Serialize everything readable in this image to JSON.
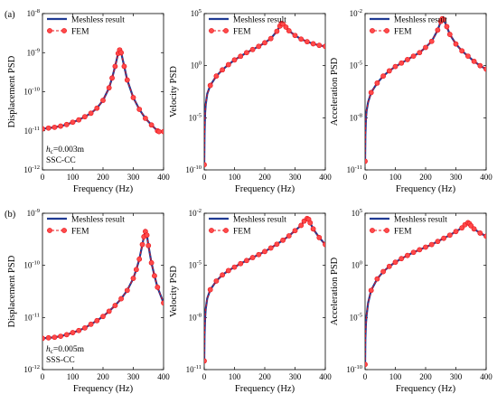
{
  "colors": {
    "meshless": "#1f3a93",
    "fem": "#e8141b",
    "fem_fill": "#ff4a4a"
  },
  "chart_data": [
    {
      "type": "line",
      "panel_label": "(a)",
      "xlabel": "Frequency (Hz)",
      "ylabel": "Displacement PSD",
      "xlim": [
        0,
        400
      ],
      "xticks": [
        "0",
        "100",
        "200",
        "300",
        "400"
      ],
      "ylim_exp": [
        -12,
        -8
      ],
      "ytick_exps": [
        -12,
        -11,
        -10,
        -9,
        -8
      ],
      "legend": "top-left",
      "annotations": [
        "h",
        "c",
        "=0.003m",
        "SSC-CC"
      ],
      "series": [
        {
          "name": "Meshless result",
          "style": "solid",
          "x": [
            0,
            20,
            40,
            60,
            80,
            100,
            120,
            140,
            160,
            180,
            200,
            220,
            230,
            240,
            250,
            255,
            260,
            270,
            280,
            300,
            320,
            340,
            360,
            380,
            385,
            400
          ],
          "log_y": [
            -10.95,
            -10.93,
            -10.91,
            -10.88,
            -10.84,
            -10.78,
            -10.72,
            -10.64,
            -10.55,
            -10.42,
            -10.22,
            -9.9,
            -9.65,
            -9.35,
            -9.02,
            -8.93,
            -9.0,
            -9.35,
            -9.7,
            -10.15,
            -10.45,
            -10.68,
            -10.85,
            -11.0,
            -11.02,
            -11.02
          ]
        },
        {
          "name": "FEM",
          "style": "dashed-marker",
          "x": [
            0,
            20,
            40,
            60,
            80,
            100,
            120,
            140,
            160,
            180,
            200,
            220,
            230,
            240,
            250,
            255,
            260,
            270,
            280,
            300,
            320,
            340,
            360,
            380,
            385,
            400
          ],
          "log_y": [
            -10.95,
            -10.93,
            -10.91,
            -10.88,
            -10.84,
            -10.78,
            -10.72,
            -10.64,
            -10.55,
            -10.42,
            -10.22,
            -9.9,
            -9.65,
            -9.35,
            -9.02,
            -8.93,
            -9.0,
            -9.35,
            -9.7,
            -10.15,
            -10.45,
            -10.68,
            -10.85,
            -11.0,
            -11.02,
            -11.02
          ]
        }
      ]
    },
    {
      "type": "line",
      "xlabel": "Frequency (Hz)",
      "ylabel": "Velocity PSD",
      "xlim": [
        0,
        400
      ],
      "xticks": [
        "0",
        "100",
        "200",
        "300",
        "400"
      ],
      "ylim_exp": [
        -10,
        5
      ],
      "ytick_exps": [
        -10,
        -5,
        0,
        5
      ],
      "legend": "top-left",
      "series": [
        {
          "name": "Meshless result",
          "style": "solid",
          "x": [
            0,
            1,
            3,
            5,
            10,
            20,
            40,
            60,
            80,
            100,
            120,
            140,
            160,
            180,
            200,
            220,
            240,
            250,
            255,
            260,
            270,
            280,
            300,
            320,
            340,
            360,
            380,
            400
          ],
          "log_y": [
            -9.5,
            -6.5,
            -4.5,
            -3.7,
            -2.7,
            -1.9,
            -1.0,
            -0.4,
            0.1,
            0.55,
            0.9,
            1.25,
            1.55,
            1.85,
            2.2,
            2.6,
            3.3,
            3.8,
            4.05,
            4.0,
            3.7,
            3.35,
            2.9,
            2.55,
            2.3,
            2.1,
            1.95,
            1.85
          ]
        },
        {
          "name": "FEM",
          "style": "dashed-marker",
          "x": [
            0,
            1,
            3,
            5,
            10,
            20,
            40,
            60,
            80,
            100,
            120,
            140,
            160,
            180,
            200,
            220,
            240,
            250,
            255,
            260,
            270,
            280,
            300,
            320,
            340,
            360,
            380,
            400
          ],
          "log_y": [
            -9.5,
            -6.5,
            -4.5,
            -3.7,
            -2.7,
            -1.9,
            -1.0,
            -0.4,
            0.1,
            0.55,
            0.9,
            1.25,
            1.55,
            1.85,
            2.2,
            2.6,
            3.3,
            3.8,
            4.05,
            4.0,
            3.7,
            3.35,
            2.9,
            2.55,
            2.3,
            2.1,
            1.95,
            1.85
          ]
        }
      ]
    },
    {
      "type": "line",
      "xlabel": "Frequency (Hz)",
      "ylabel": "Acceleration PSD",
      "xlim": [
        0,
        400
      ],
      "xticks": [
        "0",
        "100",
        "200",
        "300",
        "400"
      ],
      "ylim_exp": [
        -11,
        -2
      ],
      "ytick_exps": [
        -11,
        -8,
        -5,
        -2
      ],
      "legend": "top-left",
      "series": [
        {
          "name": "Meshless result",
          "style": "solid",
          "x": [
            0,
            1,
            3,
            5,
            10,
            20,
            40,
            60,
            80,
            100,
            120,
            140,
            160,
            180,
            200,
            220,
            240,
            250,
            255,
            260,
            270,
            280,
            300,
            320,
            340,
            360,
            380,
            400
          ],
          "log_y": [
            -10.5,
            -9.0,
            -8.0,
            -7.6,
            -7.1,
            -6.55,
            -6.0,
            -5.6,
            -5.3,
            -5.05,
            -4.85,
            -4.65,
            -4.45,
            -4.25,
            -3.95,
            -3.6,
            -2.95,
            -2.45,
            -2.3,
            -2.35,
            -2.75,
            -3.2,
            -3.75,
            -4.15,
            -4.45,
            -4.75,
            -5.0,
            -5.2
          ]
        },
        {
          "name": "FEM",
          "style": "dashed-marker",
          "x": [
            0,
            1,
            3,
            5,
            10,
            20,
            40,
            60,
            80,
            100,
            120,
            140,
            160,
            180,
            200,
            220,
            240,
            250,
            255,
            260,
            270,
            280,
            300,
            320,
            340,
            360,
            380,
            400
          ],
          "log_y": [
            -10.5,
            -9.0,
            -8.0,
            -7.6,
            -7.1,
            -6.55,
            -6.0,
            -5.6,
            -5.3,
            -5.05,
            -4.85,
            -4.65,
            -4.45,
            -4.25,
            -3.95,
            -3.6,
            -2.95,
            -2.45,
            -2.3,
            -2.35,
            -2.75,
            -3.2,
            -3.75,
            -4.15,
            -4.45,
            -4.75,
            -5.0,
            -5.2
          ]
        }
      ]
    },
    {
      "type": "line",
      "panel_label": "(b)",
      "xlabel": "Frequency (Hz)",
      "ylabel": "Displacement PSD",
      "xlim": [
        0,
        400
      ],
      "xticks": [
        "0",
        "100",
        "200",
        "300",
        "400"
      ],
      "ylim_exp": [
        -12,
        -9
      ],
      "ytick_exps": [
        -12,
        -11,
        -10,
        -9
      ],
      "legend": "top-left",
      "annotations": [
        "h",
        "c",
        "=0.005m",
        "SSS-CC"
      ],
      "series": [
        {
          "name": "Meshless result",
          "style": "solid",
          "x": [
            0,
            20,
            40,
            60,
            80,
            100,
            120,
            140,
            160,
            180,
            200,
            220,
            240,
            260,
            280,
            300,
            310,
            320,
            330,
            335,
            340,
            345,
            350,
            360,
            370,
            380,
            400
          ],
          "log_y": [
            -11.4,
            -11.39,
            -11.38,
            -11.36,
            -11.33,
            -11.29,
            -11.25,
            -11.2,
            -11.13,
            -11.06,
            -10.98,
            -10.88,
            -10.77,
            -10.64,
            -10.48,
            -10.25,
            -10.08,
            -9.88,
            -9.6,
            -9.45,
            -9.35,
            -9.42,
            -9.62,
            -9.95,
            -10.2,
            -10.42,
            -10.72
          ]
        },
        {
          "name": "FEM",
          "style": "dashed-marker",
          "x": [
            0,
            20,
            40,
            60,
            80,
            100,
            120,
            140,
            160,
            180,
            200,
            220,
            240,
            260,
            280,
            300,
            310,
            320,
            330,
            335,
            340,
            345,
            350,
            360,
            370,
            380,
            400
          ],
          "log_y": [
            -11.4,
            -11.39,
            -11.38,
            -11.36,
            -11.33,
            -11.29,
            -11.25,
            -11.2,
            -11.13,
            -11.06,
            -10.98,
            -10.88,
            -10.77,
            -10.64,
            -10.48,
            -10.25,
            -10.08,
            -9.88,
            -9.6,
            -9.45,
            -9.35,
            -9.42,
            -9.62,
            -9.95,
            -10.2,
            -10.42,
            -10.72
          ]
        }
      ]
    },
    {
      "type": "line",
      "xlabel": "Frequency (Hz)",
      "ylabel": "Velocity PSD",
      "xlim": [
        0,
        400
      ],
      "xticks": [
        "0",
        "100",
        "200",
        "300",
        "400"
      ],
      "ylim_exp": [
        -11,
        -2
      ],
      "ytick_exps": [
        -11,
        -8,
        -5,
        -2
      ],
      "legend": "top-left",
      "series": [
        {
          "name": "Meshless result",
          "style": "solid",
          "x": [
            0,
            1,
            3,
            5,
            10,
            20,
            40,
            60,
            80,
            100,
            120,
            140,
            160,
            180,
            200,
            220,
            240,
            260,
            280,
            300,
            320,
            330,
            340,
            345,
            350,
            360,
            380,
            400
          ],
          "log_y": [
            -10.5,
            -9.0,
            -8.0,
            -7.5,
            -6.9,
            -6.4,
            -5.9,
            -5.55,
            -5.3,
            -5.1,
            -4.9,
            -4.72,
            -4.55,
            -4.38,
            -4.2,
            -4.0,
            -3.78,
            -3.55,
            -3.3,
            -3.0,
            -2.7,
            -2.45,
            -2.3,
            -2.35,
            -2.55,
            -2.9,
            -3.4,
            -3.8
          ]
        },
        {
          "name": "FEM",
          "style": "dashed-marker",
          "x": [
            0,
            1,
            3,
            5,
            10,
            20,
            40,
            60,
            80,
            100,
            120,
            140,
            160,
            180,
            200,
            220,
            240,
            260,
            280,
            300,
            320,
            330,
            340,
            345,
            350,
            360,
            380,
            400
          ],
          "log_y": [
            -10.5,
            -9.0,
            -8.0,
            -7.5,
            -6.9,
            -6.4,
            -5.9,
            -5.55,
            -5.3,
            -5.1,
            -4.9,
            -4.72,
            -4.55,
            -4.38,
            -4.2,
            -4.0,
            -3.78,
            -3.55,
            -3.3,
            -3.0,
            -2.7,
            -2.45,
            -2.3,
            -2.35,
            -2.55,
            -2.9,
            -3.4,
            -3.8
          ]
        }
      ]
    },
    {
      "type": "line",
      "xlabel": "Frequency (Hz)",
      "ylabel": "Acceleration PSD",
      "xlim": [
        0,
        400
      ],
      "xticks": [
        "0",
        "100",
        "200",
        "300",
        "400"
      ],
      "ylim_exp": [
        -10,
        5
      ],
      "ytick_exps": [
        -10,
        -5,
        0,
        5
      ],
      "legend": "top-left",
      "series": [
        {
          "name": "Meshless result",
          "style": "solid",
          "x": [
            0,
            1,
            3,
            5,
            10,
            20,
            40,
            60,
            80,
            100,
            120,
            140,
            160,
            180,
            200,
            220,
            240,
            260,
            280,
            300,
            320,
            330,
            340,
            345,
            350,
            360,
            380,
            400
          ],
          "log_y": [
            -9.5,
            -7.0,
            -5.5,
            -4.8,
            -3.6,
            -2.4,
            -1.3,
            -0.6,
            -0.1,
            0.3,
            0.65,
            0.95,
            1.25,
            1.5,
            1.75,
            2.0,
            2.3,
            2.6,
            2.9,
            3.25,
            3.6,
            3.9,
            4.1,
            4.0,
            3.8,
            3.5,
            3.1,
            2.8
          ]
        },
        {
          "name": "FEM",
          "style": "dashed-marker",
          "x": [
            0,
            1,
            3,
            5,
            10,
            20,
            40,
            60,
            80,
            100,
            120,
            140,
            160,
            180,
            200,
            220,
            240,
            260,
            280,
            300,
            320,
            330,
            340,
            345,
            350,
            360,
            380,
            400
          ],
          "log_y": [
            -9.5,
            -7.0,
            -5.5,
            -4.8,
            -3.6,
            -2.4,
            -1.3,
            -0.6,
            -0.1,
            0.3,
            0.65,
            0.95,
            1.25,
            1.5,
            1.75,
            2.0,
            2.3,
            2.6,
            2.9,
            3.25,
            3.6,
            3.9,
            4.1,
            4.0,
            3.8,
            3.5,
            3.1,
            2.8
          ]
        }
      ]
    }
  ]
}
